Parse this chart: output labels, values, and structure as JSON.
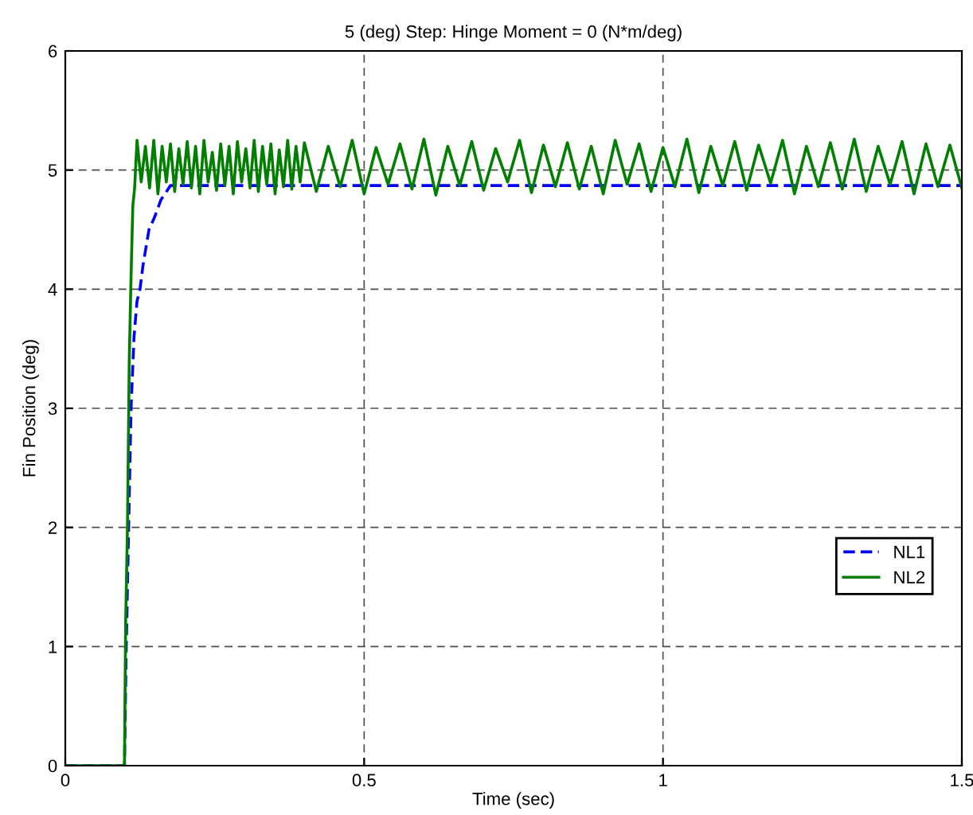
{
  "chart_data": {
    "type": "line",
    "title": "5 (deg) Step: Hinge Moment = 0 (N*m/deg)",
    "xlabel": "Time (sec)",
    "ylabel": "Fin Position (deg)",
    "xlim": [
      0,
      1.5
    ],
    "ylim": [
      0,
      6
    ],
    "xticks": [
      0,
      0.5,
      1,
      1.5
    ],
    "yticks": [
      0,
      1,
      2,
      3,
      4,
      5,
      6
    ],
    "grid": true,
    "legend": "right",
    "series": [
      {
        "name": "NL1",
        "color": "#0000ff",
        "line_style": "dashed",
        "x": [
          0,
          0.099,
          0.102,
          0.106,
          0.11,
          0.115,
          0.12,
          0.125,
          0.13,
          0.14,
          0.149,
          0.16,
          0.176,
          0.2,
          1.5
        ],
        "values": [
          0,
          0,
          1.0,
          2.0,
          3.0,
          3.6,
          3.9,
          4.0,
          4.2,
          4.5,
          4.6,
          4.75,
          4.87,
          4.87,
          4.87
        ]
      },
      {
        "name": "NL2",
        "color": "#007f00",
        "line_style": "solid",
        "x": [
          0,
          0.099,
          0.101,
          0.104,
          0.107,
          0.11,
          0.113,
          0.116,
          0.12,
          0.127,
          0.134,
          0.141,
          0.148,
          0.155,
          0.162,
          0.169,
          0.176,
          0.183,
          0.19,
          0.197,
          0.204,
          0.211,
          0.218,
          0.225,
          0.232,
          0.239,
          0.246,
          0.253,
          0.26,
          0.267,
          0.274,
          0.281,
          0.288,
          0.295,
          0.302,
          0.309,
          0.316,
          0.323,
          0.33,
          0.337,
          0.344,
          0.351,
          0.358,
          0.365,
          0.372,
          0.379,
          0.386,
          0.393,
          0.4,
          0.42,
          0.44,
          0.46,
          0.48,
          0.5,
          0.52,
          0.54,
          0.56,
          0.58,
          0.6,
          0.62,
          0.64,
          0.66,
          0.68,
          0.7,
          0.72,
          0.74,
          0.76,
          0.78,
          0.8,
          0.82,
          0.84,
          0.86,
          0.88,
          0.9,
          0.92,
          0.94,
          0.96,
          0.98,
          1.0,
          1.02,
          1.04,
          1.06,
          1.08,
          1.1,
          1.12,
          1.14,
          1.16,
          1.18,
          1.2,
          1.22,
          1.24,
          1.26,
          1.28,
          1.3,
          1.32,
          1.34,
          1.36,
          1.38,
          1.4,
          1.42,
          1.44,
          1.46,
          1.48,
          1.5
        ],
        "values": [
          0,
          0,
          1.2,
          2.0,
          3.4,
          4.1,
          4.7,
          4.85,
          5.25,
          4.9,
          5.2,
          4.85,
          5.25,
          4.8,
          5.2,
          4.9,
          5.22,
          4.82,
          5.18,
          4.88,
          5.24,
          4.85,
          5.2,
          4.8,
          5.25,
          4.9,
          5.15,
          4.83,
          5.22,
          4.87,
          5.2,
          4.8,
          5.24,
          4.9,
          5.18,
          4.85,
          5.25,
          4.82,
          5.2,
          4.88,
          5.22,
          4.8,
          5.17,
          4.86,
          5.25,
          4.84,
          5.2,
          4.9,
          5.23,
          4.82,
          5.2,
          4.86,
          5.25,
          4.8,
          5.19,
          4.88,
          5.22,
          4.84,
          5.26,
          4.79,
          5.2,
          4.87,
          5.24,
          4.83,
          5.18,
          4.9,
          5.25,
          4.81,
          5.21,
          4.86,
          5.23,
          4.84,
          5.2,
          4.8,
          5.25,
          4.88,
          5.22,
          4.82,
          5.19,
          4.86,
          5.26,
          4.81,
          5.2,
          4.87,
          5.24,
          4.83,
          5.21,
          4.89,
          5.25,
          4.8,
          5.2,
          4.86,
          5.23,
          4.84,
          5.26,
          4.82,
          5.2,
          4.88,
          5.24,
          4.8,
          5.22,
          4.86,
          5.21,
          4.85
        ]
      }
    ]
  }
}
